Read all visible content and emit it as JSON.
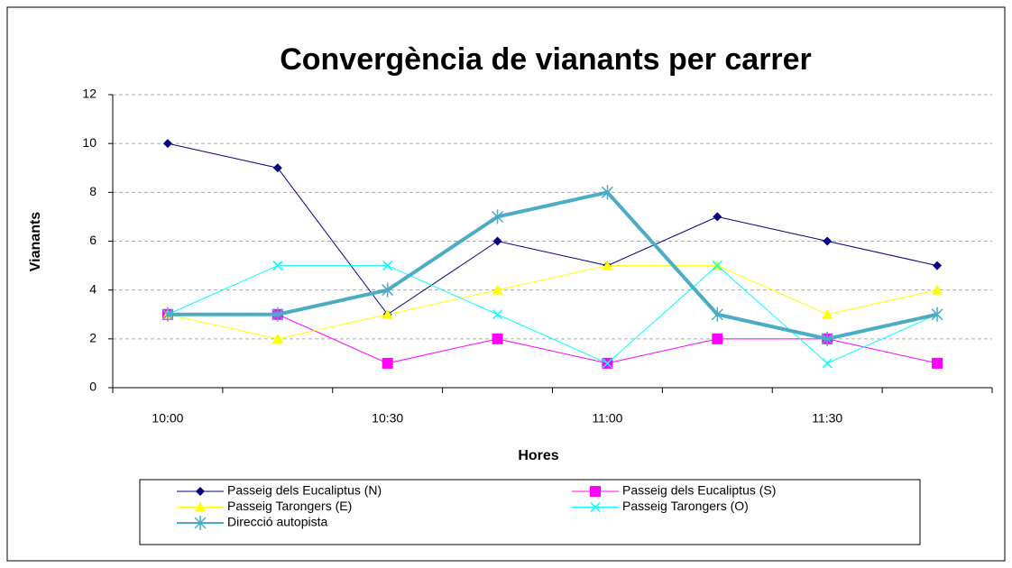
{
  "chart_data": {
    "type": "line",
    "title": "Convergència de vianants per carrer",
    "xlabel": "Hores",
    "ylabel": "Vianants",
    "categories": [
      "10:00",
      null,
      "10:30",
      null,
      "11:00",
      null,
      "11:30",
      null
    ],
    "series": [
      {
        "name": "Passeig dels Eucaliptus (N)",
        "color": "#000080",
        "marker": "diamond",
        "line_width": 1,
        "values": [
          10,
          9,
          3,
          6,
          5,
          7,
          6,
          5
        ]
      },
      {
        "name": "Passeig dels Eucaliptus (S)",
        "color": "#ff00ff",
        "marker": "square",
        "line_width": 1,
        "values": [
          3,
          3,
          1,
          2,
          1,
          2,
          2,
          1
        ]
      },
      {
        "name": "Passeig Tarongers (E)",
        "color": "#ffff00",
        "marker": "triangle",
        "line_width": 1,
        "values": [
          3,
          2,
          3,
          4,
          5,
          5,
          3,
          4
        ]
      },
      {
        "name": "Passeig Tarongers (O)",
        "color": "#00ffff",
        "marker": "x",
        "line_width": 1,
        "values": [
          3,
          5,
          5,
          3,
          1,
          5,
          1,
          3
        ]
      },
      {
        "name": "Direcció autopista",
        "color": "#4bacc6",
        "marker": "star",
        "line_width": 4,
        "values": [
          3,
          3,
          4,
          7,
          8,
          3,
          2,
          3
        ]
      }
    ],
    "ylim": [
      0,
      12
    ],
    "yticks": [
      0,
      2,
      4,
      6,
      8,
      10,
      12
    ],
    "grid": true
  }
}
